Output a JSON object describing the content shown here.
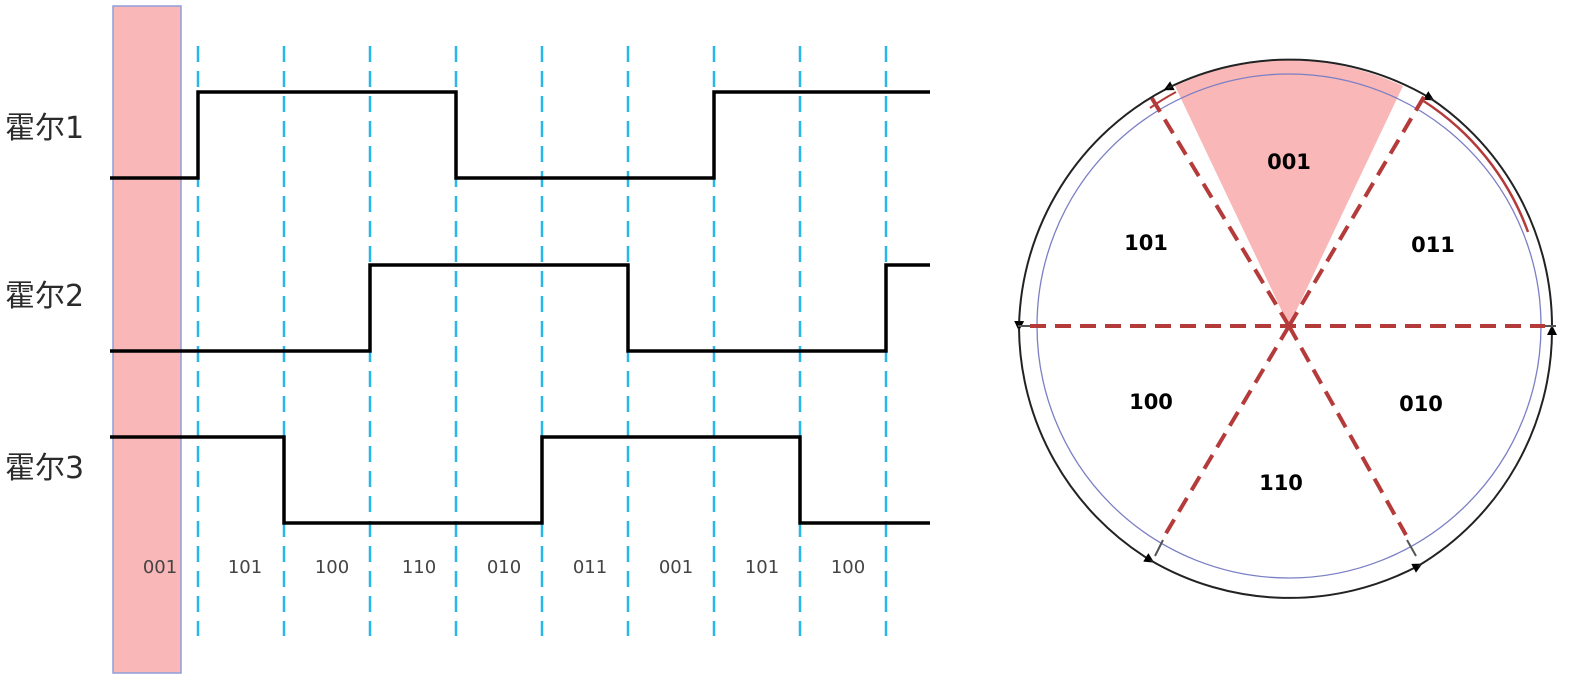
{
  "colors": {
    "highlight_fill": "#f9b7b7",
    "highlight_stroke": "#8e9fd8",
    "dashed_divider": "#29b6e8",
    "waveform": "#000000",
    "sector_divider": "#b53a3a",
    "inner_circle": "#7b7fc4",
    "outer_arc": "#222222"
  },
  "timing": {
    "rows": [
      {
        "label": "霍尔1",
        "levels": [
          0,
          1,
          1,
          1,
          0,
          0,
          0,
          1,
          1,
          1
        ]
      },
      {
        "label": "霍尔2",
        "levels": [
          0,
          0,
          0,
          1,
          1,
          1,
          0,
          0,
          0,
          1
        ]
      },
      {
        "label": "霍尔3",
        "levels": [
          1,
          1,
          0,
          0,
          0,
          1,
          1,
          1,
          0,
          0
        ]
      }
    ],
    "states": [
      "001",
      "101",
      "100",
      "110",
      "010",
      "011",
      "001",
      "101",
      "100"
    ],
    "highlighted_state": "001"
  },
  "rotor": {
    "sectors": [
      {
        "code": "001",
        "highlighted": true
      },
      {
        "code": "011",
        "highlighted": false
      },
      {
        "code": "010",
        "highlighted": false
      },
      {
        "code": "110",
        "highlighted": false
      },
      {
        "code": "100",
        "highlighted": false
      },
      {
        "code": "101",
        "highlighted": false
      }
    ]
  }
}
